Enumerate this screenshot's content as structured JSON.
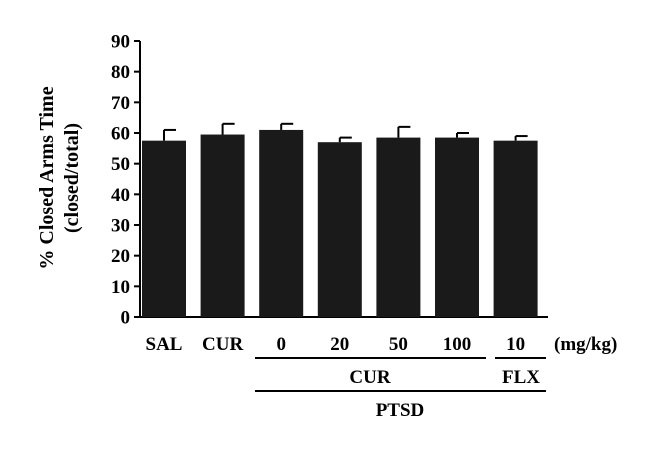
{
  "chart_data": {
    "type": "bar",
    "ylabel_line1": "% Closed Arms Time",
    "ylabel_line2": "(closed/total)",
    "ylim": [
      0,
      90
    ],
    "yticks": [
      "0",
      "10",
      "20",
      "30",
      "40",
      "50",
      "60",
      "70",
      "80",
      "90"
    ],
    "categories": [
      "SAL",
      "CUR",
      "0",
      "20",
      "50",
      "100",
      "10"
    ],
    "values": [
      57.5,
      59.5,
      61,
      57,
      58.5,
      58.5,
      57.5
    ],
    "errors": [
      3.5,
      3.5,
      2,
      1.5,
      3.5,
      1.5,
      1.5
    ],
    "unit": "(mg/kg)",
    "groups": {
      "cur": "CUR",
      "flx": "FLX",
      "ptsd": "PTSD"
    },
    "colors": {
      "bar": "#1a1a1a",
      "axis": "#000000"
    },
    "grid": false,
    "legend": "none"
  }
}
